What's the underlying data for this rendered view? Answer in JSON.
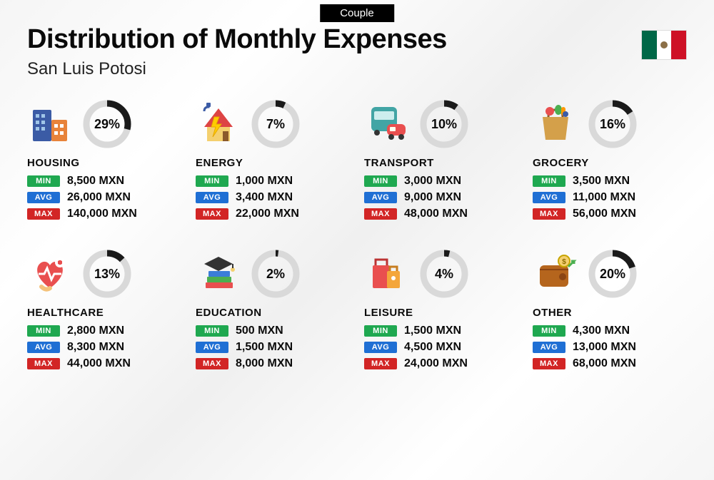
{
  "badge": "Couple",
  "title": "Distribution of Monthly Expenses",
  "subtitle": "San Luis Potosi",
  "currency": "MXN",
  "labels": {
    "min": "MIN",
    "avg": "AVG",
    "max": "MAX"
  },
  "colors": {
    "tag_min": "#1fa850",
    "tag_avg": "#1f6fd4",
    "tag_max": "#d22525",
    "donut_fg": "#1a1a1a",
    "donut_bg": "#d9d9d9",
    "text": "#0a0a0a",
    "background_gradient": [
      "#f5f5f5",
      "#ffffff",
      "#f0f0f0",
      "#ffffff",
      "#f5f5f5"
    ]
  },
  "flag": {
    "left": "#006847",
    "mid": "#ffffff",
    "right": "#ce1126"
  },
  "donut": {
    "radius": 29,
    "stroke_width": 9,
    "font_size": 18
  },
  "typography": {
    "title_size": 38,
    "subtitle_size": 24,
    "cat_size": 15,
    "val_size": 16
  },
  "categories": [
    {
      "key": "housing",
      "name": "HOUSING",
      "percent": 29,
      "min": "8,500",
      "avg": "26,000",
      "max": "140,000",
      "icon": "housing-icon"
    },
    {
      "key": "energy",
      "name": "ENERGY",
      "percent": 7,
      "min": "1,000",
      "avg": "3,400",
      "max": "22,000",
      "icon": "energy-icon"
    },
    {
      "key": "transport",
      "name": "TRANSPORT",
      "percent": 10,
      "min": "3,000",
      "avg": "9,000",
      "max": "48,000",
      "icon": "transport-icon"
    },
    {
      "key": "grocery",
      "name": "GROCERY",
      "percent": 16,
      "min": "3,500",
      "avg": "11,000",
      "max": "56,000",
      "icon": "grocery-icon"
    },
    {
      "key": "healthcare",
      "name": "HEALTHCARE",
      "percent": 13,
      "min": "2,800",
      "avg": "8,300",
      "max": "44,000",
      "icon": "healthcare-icon"
    },
    {
      "key": "education",
      "name": "EDUCATION",
      "percent": 2,
      "min": "500",
      "avg": "1,500",
      "max": "8,000",
      "icon": "education-icon"
    },
    {
      "key": "leisure",
      "name": "LEISURE",
      "percent": 4,
      "min": "1,500",
      "avg": "4,500",
      "max": "24,000",
      "icon": "leisure-icon"
    },
    {
      "key": "other",
      "name": "OTHER",
      "percent": 20,
      "min": "4,300",
      "avg": "13,000",
      "max": "68,000",
      "icon": "other-icon"
    }
  ]
}
